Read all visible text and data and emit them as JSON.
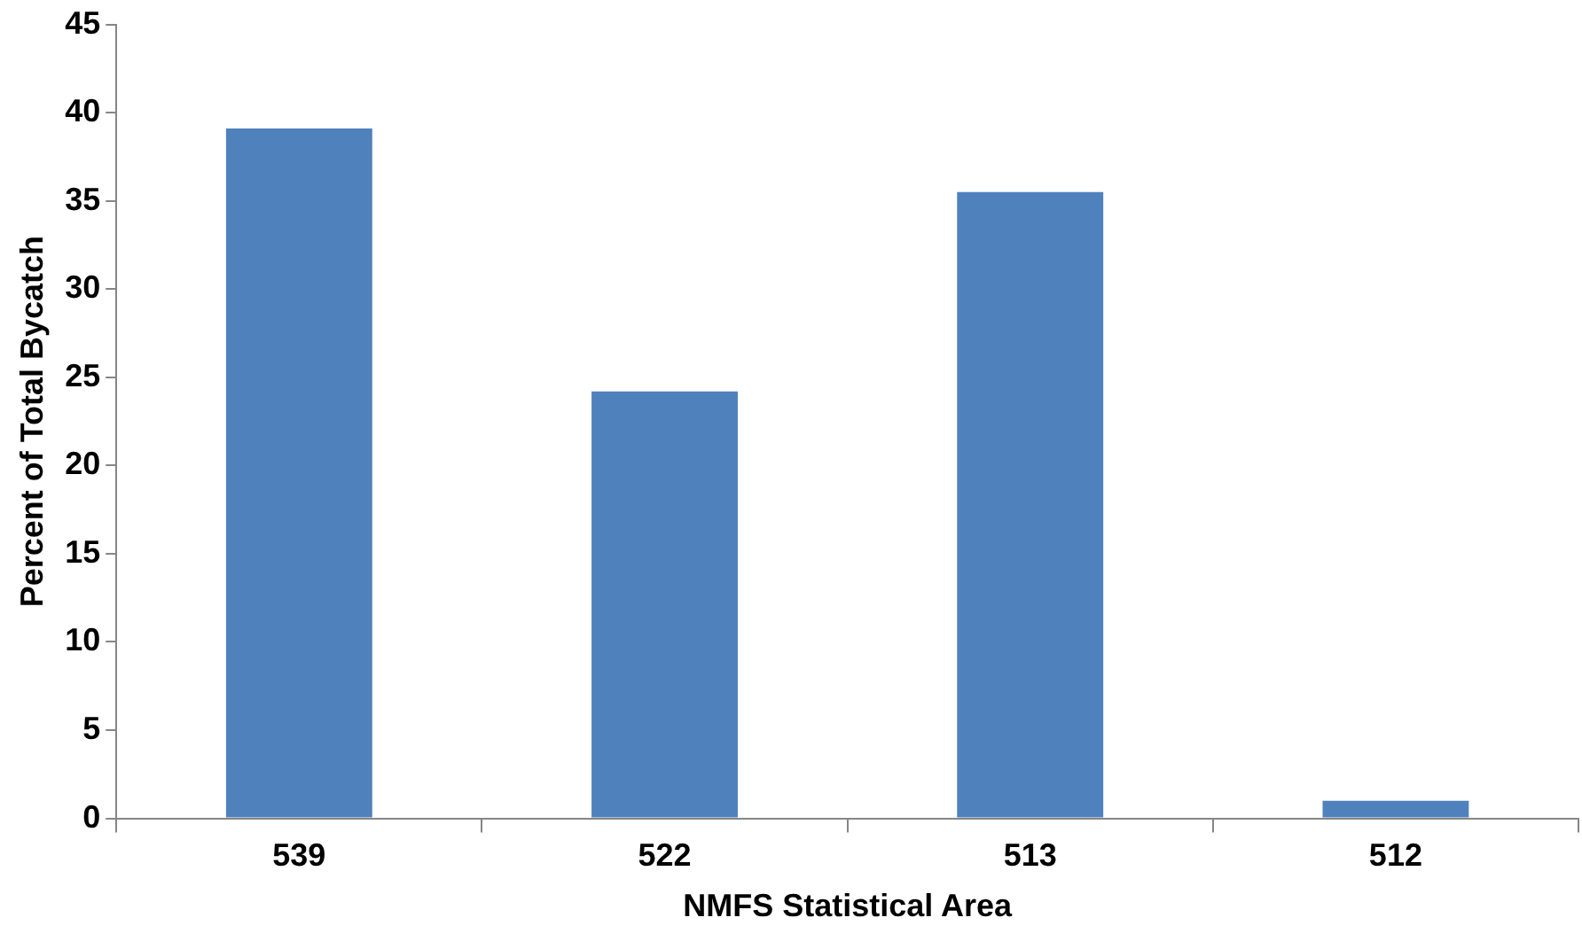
{
  "chart_data": {
    "type": "bar",
    "xlabel": "NMFS Statistical Area",
    "ylabel": "Percent of Total Bycatch",
    "categories": [
      "539",
      "522",
      "513",
      "512"
    ],
    "series": [
      {
        "color": "#4f81bd",
        "values": [
          39.1,
          24.2,
          35.5,
          1.0
        ]
      }
    ],
    "ylim": [
      0,
      45
    ],
    "yticks": [
      0,
      5,
      10,
      15,
      20,
      25,
      30,
      35,
      40,
      45
    ],
    "grid": false,
    "legend": false
  }
}
